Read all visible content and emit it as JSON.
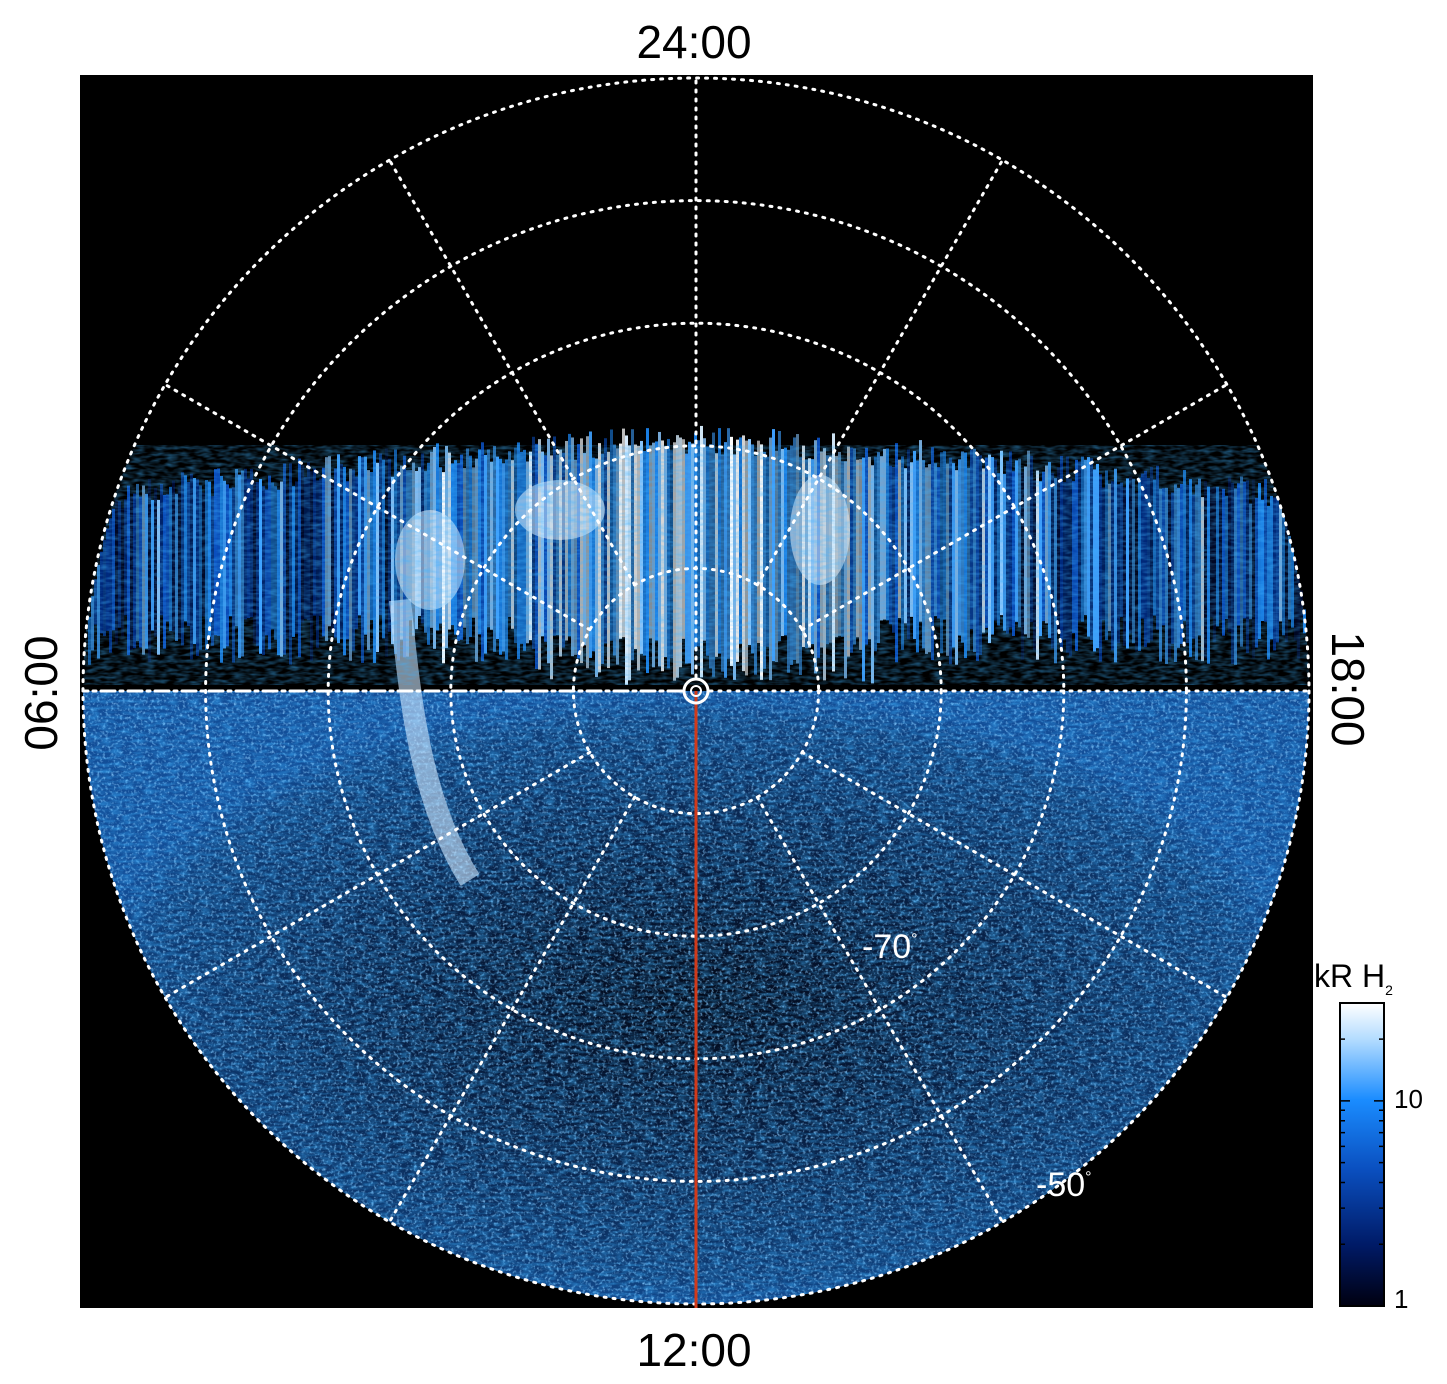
{
  "chart_data": {
    "type": "heatmap",
    "projection": "polar (south pole view, local time vs latitude)",
    "local_time_labels": {
      "top": "24:00",
      "bottom": "12:00",
      "left": "06:00",
      "right": "18:00"
    },
    "latitude_labels": [
      {
        "text": "-70",
        "lat": -70
      },
      {
        "text": "-50",
        "lat": -50
      }
    ],
    "latitude_grid_deg": [
      -80,
      -70,
      -60,
      -50,
      -40
    ],
    "local_time_grid_hours": [
      0,
      2,
      4,
      6,
      8,
      10,
      12,
      14,
      16,
      18,
      20,
      22
    ],
    "colorbar": {
      "title": "kR H",
      "title_subscript": "2",
      "scale": "log",
      "range": [
        1,
        30
      ],
      "tick_labels": [
        "10",
        "1"
      ],
      "colors": [
        "#000010",
        "#001a66",
        "#0a4fbf",
        "#1a8cff",
        "#b3dcff",
        "#ffffff"
      ]
    },
    "meridian_line_color": "#d13a1a",
    "grid_color": "#ffffff",
    "background_color": "#000000",
    "degree_symbol": "°",
    "features": [
      "auroral oval band spanning dusk-midnight-dawn, brightest near midnight",
      "noisy dayside emission toward 12:00",
      "red meridian line along 12:00"
    ]
  }
}
